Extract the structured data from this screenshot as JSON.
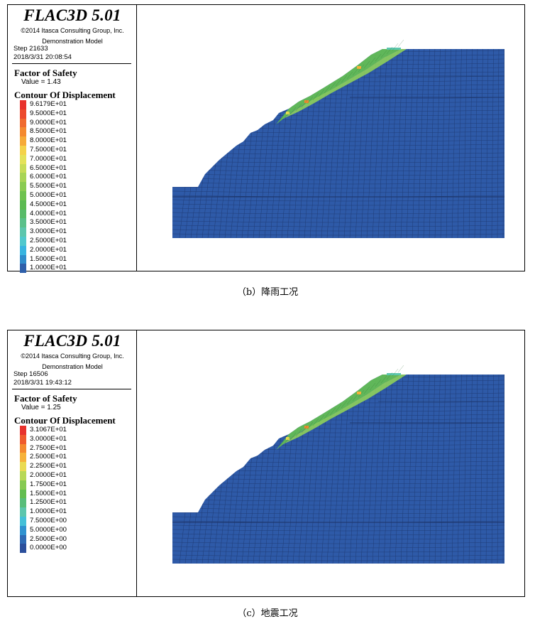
{
  "panels": [
    {
      "title": "FLAC3D 5.01",
      "copyright": "©2014 Itasca Consulting Group, Inc.",
      "model": "Demonstration Model",
      "step": "Step 21633",
      "date": "2018/3/31 20:08:54",
      "fos_label": "Factor of Safety",
      "fos_value": "Value = 1.43",
      "contour_title": "Contour Of Displacement",
      "scale": [
        {
          "label": "9.6179E+01",
          "color": "#e8322d"
        },
        {
          "label": "9.5000E+01",
          "color": "#ec4a2c"
        },
        {
          "label": "9.0000E+01",
          "color": "#f06a2e"
        },
        {
          "label": "8.5000E+01",
          "color": "#f4892f"
        },
        {
          "label": "8.0000E+01",
          "color": "#f6aa38"
        },
        {
          "label": "7.5000E+01",
          "color": "#f4d24a"
        },
        {
          "label": "7.0000E+01",
          "color": "#e4e25a"
        },
        {
          "label": "6.5000E+01",
          "color": "#c7dc58"
        },
        {
          "label": "6.0000E+01",
          "color": "#a8d456"
        },
        {
          "label": "5.5000E+01",
          "color": "#8acb52"
        },
        {
          "label": "5.0000E+01",
          "color": "#6fc24f"
        },
        {
          "label": "4.5000E+01",
          "color": "#5cba52"
        },
        {
          "label": "4.0000E+01",
          "color": "#58bb6a"
        },
        {
          "label": "3.5000E+01",
          "color": "#5ac08a"
        },
        {
          "label": "3.0000E+01",
          "color": "#5cc6ad"
        },
        {
          "label": "2.5000E+01",
          "color": "#50c8cd"
        },
        {
          "label": "2.0000E+01",
          "color": "#38b4e0"
        },
        {
          "label": "1.5000E+01",
          "color": "#2f8ccb"
        },
        {
          "label": "1.0000E+01",
          "color": "#2e5faa"
        }
      ],
      "caption": "（b）降雨工况"
    },
    {
      "title": "FLAC3D 5.01",
      "copyright": "©2014 Itasca Consulting Group, Inc.",
      "model": "Demonstration Model",
      "step": "Step 16506",
      "date": "2018/3/31 19:43:12",
      "fos_label": "Factor of Safety",
      "fos_value": "Value = 1.25",
      "contour_title": "Contour Of Displacement",
      "scale": [
        {
          "label": "3.1067E+01",
          "color": "#e8322d"
        },
        {
          "label": "3.0000E+01",
          "color": "#ef5a2d"
        },
        {
          "label": "2.7500E+01",
          "color": "#f4892f"
        },
        {
          "label": "2.5000E+01",
          "color": "#f6b23a"
        },
        {
          "label": "2.2500E+01",
          "color": "#eadb52"
        },
        {
          "label": "2.0000E+01",
          "color": "#b8d857"
        },
        {
          "label": "1.7500E+01",
          "color": "#86c952"
        },
        {
          "label": "1.5000E+01",
          "color": "#62bd50"
        },
        {
          "label": "1.2500E+01",
          "color": "#58bd7a"
        },
        {
          "label": "1.0000E+01",
          "color": "#5cc6ad"
        },
        {
          "label": "7.5000E+00",
          "color": "#44c0d8"
        },
        {
          "label": "5.0000E+00",
          "color": "#2f92d0"
        },
        {
          "label": "2.5000E+00",
          "color": "#2e6ab4"
        },
        {
          "label": "0.0000E+00",
          "color": "#2b4f9c"
        }
      ],
      "caption": "（c）地震工况"
    }
  ],
  "colors": {
    "mesh_base": "#2e5aa8",
    "mesh_line": "#1c3366"
  }
}
